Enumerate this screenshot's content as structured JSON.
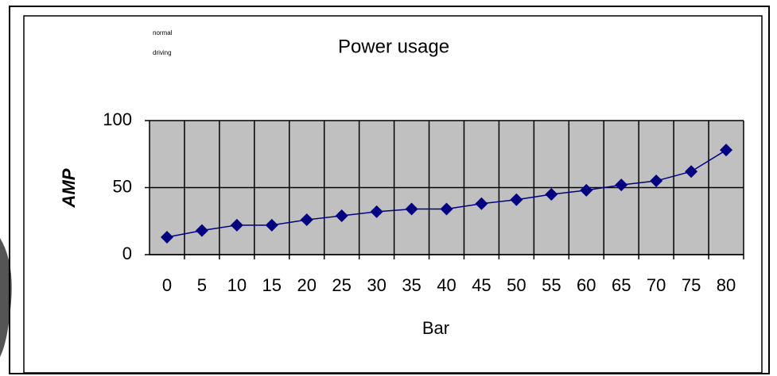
{
  "chart_data": {
    "type": "line",
    "title": "Power usage",
    "annotations": [
      "normal",
      "driving"
    ],
    "x_label": "Bar",
    "y_label": "AMP",
    "categories": [
      "0",
      "5",
      "10",
      "15",
      "20",
      "25",
      "30",
      "35",
      "40",
      "45",
      "50",
      "55",
      "60",
      "65",
      "70",
      "75",
      "80"
    ],
    "series": [
      {
        "name": "AMP",
        "color": "#000080",
        "values": [
          13,
          18,
          22,
          22,
          26,
          29,
          32,
          34,
          34,
          38,
          41,
          45,
          48,
          52,
          55,
          62,
          78
        ]
      }
    ],
    "ylim": [
      0,
      100
    ],
    "yticks": [
      0,
      50,
      100
    ],
    "grid": true,
    "plot_background": "#c0c0c0",
    "legend": false
  }
}
